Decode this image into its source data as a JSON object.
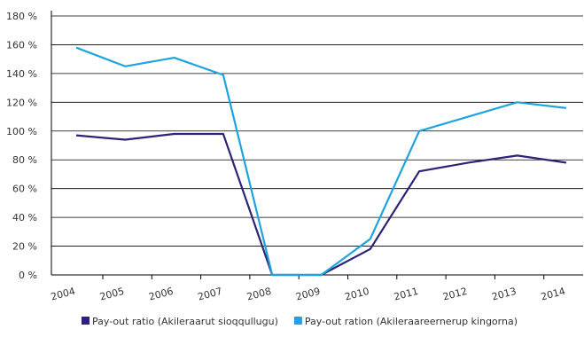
{
  "chart_data": {
    "type": "line",
    "categories": [
      "2004",
      "2005",
      "2006",
      "2007",
      "2008",
      "2009",
      "2010",
      "2011",
      "2012",
      "2013",
      "2014"
    ],
    "y_ticks": [
      "0 %",
      "20 %",
      "40 %",
      "60 %",
      "80 %",
      "100 %",
      "120 %",
      "140 %",
      "160 %",
      "180 %"
    ],
    "ylim": [
      0,
      180
    ],
    "grid": true,
    "legend_position": "bottom",
    "series": [
      {
        "name": "Pay-out ratio (Akileraarut sioqqullugu)",
        "color": "#2b2376",
        "values": [
          97,
          94,
          98,
          98,
          0,
          0,
          18,
          72,
          78,
          83,
          78
        ]
      },
      {
        "name": "Pay-out ration (Akileraareernerup kingorna)",
        "color": "#1ea3e0",
        "values": [
          158,
          145,
          151,
          139,
          0,
          0,
          25,
          100,
          110,
          120,
          116
        ]
      }
    ]
  }
}
